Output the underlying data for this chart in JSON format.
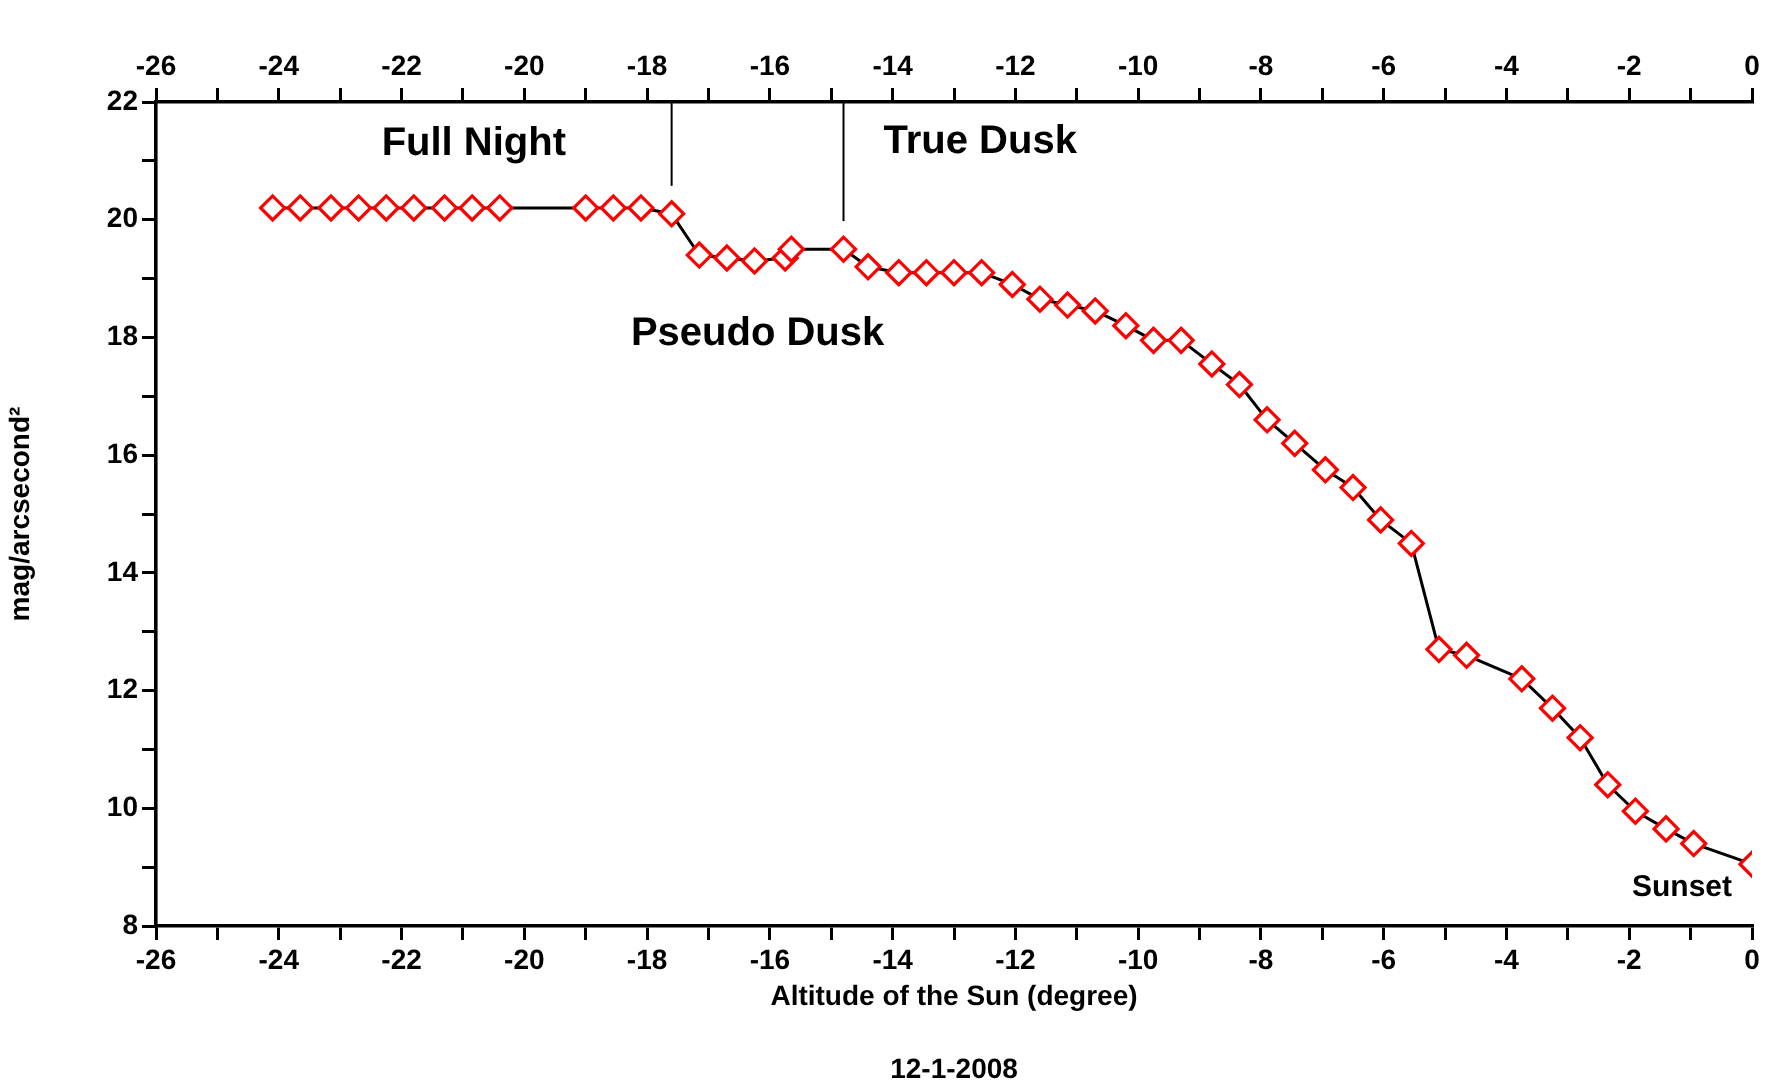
{
  "chart_data": {
    "type": "line",
    "xlabel": "Altitude of the Sun (degree)",
    "ylabel": "mag/arcsecond²",
    "x": [
      -24.1,
      -23.65,
      -23.15,
      -22.7,
      -22.25,
      -21.8,
      -21.3,
      -20.85,
      -20.4,
      -19.0,
      -18.55,
      -18.1,
      -17.6,
      -17.15,
      -16.7,
      -16.25,
      -15.75,
      -15.65,
      -14.8,
      -14.4,
      -13.9,
      -13.45,
      -13.0,
      -12.55,
      -12.05,
      -11.6,
      -11.15,
      -10.7,
      -10.2,
      -9.75,
      -9.3,
      -8.8,
      -8.35,
      -7.9,
      -7.45,
      -6.95,
      -6.5,
      -6.05,
      -5.55,
      -5.1,
      -4.65,
      -3.75,
      -3.25,
      -2.8,
      -2.35,
      -1.9,
      -1.4,
      -0.95,
      0
    ],
    "series": [
      {
        "color": "#ff0000",
        "values": [
          20.2,
          20.2,
          20.2,
          20.2,
          20.2,
          20.2,
          20.2,
          20.2,
          20.2,
          20.2,
          20.2,
          20.2,
          20.1,
          19.4,
          19.35,
          19.3,
          19.35,
          19.5,
          19.5,
          19.2,
          19.1,
          19.1,
          19.1,
          19.1,
          18.9,
          18.65,
          18.55,
          18.45,
          18.2,
          17.95,
          17.95,
          17.55,
          17.2,
          16.6,
          16.2,
          15.75,
          15.45,
          14.9,
          14.5,
          12.7,
          12.6,
          12.2,
          11.7,
          11.2,
          10.4,
          9.95,
          9.65,
          9.4,
          9.05
        ]
      }
    ],
    "xlim": [
      -26,
      0
    ],
    "xticks": [
      -26,
      {
        "value": -25,
        "label": null
      },
      -24,
      {
        "value": -23,
        "label": null
      },
      -22,
      {
        "value": -21,
        "label": null
      },
      -20,
      {
        "value": -19,
        "label": null
      },
      -18,
      {
        "value": -17,
        "label": null
      },
      -16,
      {
        "value": -15,
        "label": null
      },
      -14,
      {
        "value": -13,
        "label": null
      },
      -12,
      {
        "value": -11,
        "label": null
      },
      -10,
      {
        "value": -9,
        "label": null
      },
      -8,
      {
        "value": -7,
        "label": null
      },
      -6,
      {
        "value": -5,
        "label": null
      },
      -4,
      {
        "value": -3,
        "label": null
      },
      -2,
      {
        "value": -1,
        "label": null
      },
      0
    ],
    "x2lim": [
      -26,
      0
    ],
    "x2ticks": [
      -26,
      {
        "value": -25,
        "label": null
      },
      -24,
      {
        "value": -23,
        "label": null
      },
      -22,
      {
        "value": -21,
        "label": null
      },
      -20,
      {
        "value": -19,
        "label": null
      },
      -18,
      {
        "value": -17,
        "label": null
      },
      -16,
      {
        "value": -15,
        "label": null
      },
      -14,
      {
        "value": -13,
        "label": null
      },
      -12,
      {
        "value": -11,
        "label": null
      },
      -10,
      {
        "value": -9,
        "label": null
      },
      -8,
      {
        "value": -7,
        "label": null
      },
      -6,
      {
        "value": -5,
        "label": null
      },
      -4,
      {
        "value": -3,
        "label": null
      },
      -2,
      {
        "value": -1,
        "label": null
      },
      0
    ],
    "ylim": [
      8,
      22
    ],
    "yticks": [
      8,
      {
        "value": 9,
        "label": null
      },
      10,
      {
        "value": 11,
        "label": null
      },
      12,
      {
        "value": 13,
        "label": null
      },
      14,
      {
        "value": 15,
        "label": null
      },
      16,
      {
        "value": 17,
        "label": null
      },
      18,
      {
        "value": 19,
        "label": null
      },
      20,
      {
        "value": 21,
        "label": null
      },
      22
    ],
    "ref_lines": [
      {
        "axis": "x",
        "value": -17.6,
        "color": "#000000",
        "label": "Full Night"
      },
      {
        "axis": "x",
        "value": -14.8,
        "color": "#000000",
        "label": "True Dusk"
      }
    ],
    "annotations": [
      "Pseudo Dusk",
      {
        "text": "Sunset",
        "x": 0,
        "y": 9.05
      },
      "12-1-2008"
    ],
    "marker": "diamond",
    "line_style": "solid",
    "grid": false,
    "legend": false
  }
}
